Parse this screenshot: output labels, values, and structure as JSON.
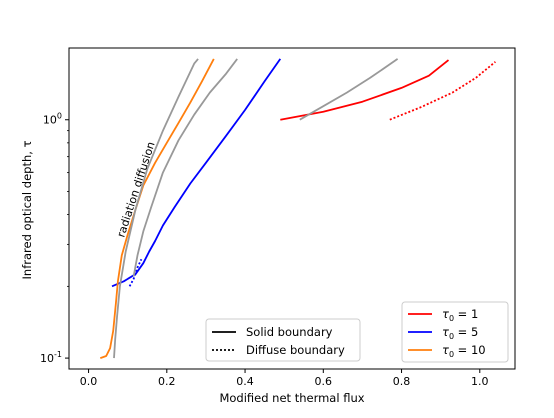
{
  "chart_data": {
    "type": "line",
    "xlabel": "Modified net thermal flux",
    "ylabel": "Infrared optical depth, τ",
    "y_scale": "log",
    "xlim": [
      -0.05,
      1.09
    ],
    "ylim": [
      0.09,
      2.0
    ],
    "grid": false,
    "x_ticks": [
      0.0,
      0.2,
      0.4,
      0.6,
      0.8,
      1.0
    ],
    "x_tick_labels": [
      "0.0",
      "0.2",
      "0.4",
      "0.6",
      "0.8",
      "1.0"
    ],
    "y_ticks": [
      0.1,
      1.0
    ],
    "y_tick_labels_base": [
      "10",
      "10"
    ],
    "y_tick_labels_exp": [
      "-1",
      "0"
    ],
    "annotation": {
      "text": "radiation diffusion",
      "color": "#999999"
    },
    "colors": {
      "tau1": "#ff0000",
      "tau5": "#0000ff",
      "tau10": "#ff7f0e",
      "reference": "#999999"
    },
    "series": [
      {
        "key": "tau5",
        "color": "#0000ff",
        "style": "solid",
        "points": [
          [
            0.06,
            0.2
          ],
          [
            0.09,
            0.21
          ],
          [
            0.12,
            0.225
          ],
          [
            0.14,
            0.25
          ],
          [
            0.155,
            0.28
          ],
          [
            0.17,
            0.31
          ],
          [
            0.19,
            0.36
          ],
          [
            0.22,
            0.43
          ],
          [
            0.26,
            0.54
          ],
          [
            0.3,
            0.66
          ],
          [
            0.35,
            0.85
          ],
          [
            0.4,
            1.1
          ],
          [
            0.45,
            1.45
          ],
          [
            0.49,
            1.8
          ]
        ]
      },
      {
        "key": "tau5",
        "color": "#0000ff",
        "style": "dotted",
        "points": [
          [
            0.105,
            0.2
          ],
          [
            0.115,
            0.215
          ],
          [
            0.125,
            0.24
          ],
          [
            0.135,
            0.26
          ]
        ]
      },
      {
        "key": "tau10",
        "color": "#ff7f0e",
        "style": "solid",
        "points": [
          [
            0.03,
            0.1
          ],
          [
            0.045,
            0.102
          ],
          [
            0.055,
            0.11
          ],
          [
            0.063,
            0.13
          ],
          [
            0.07,
            0.17
          ],
          [
            0.075,
            0.21
          ],
          [
            0.085,
            0.27
          ],
          [
            0.1,
            0.33
          ],
          [
            0.12,
            0.42
          ],
          [
            0.14,
            0.53
          ],
          [
            0.17,
            0.66
          ],
          [
            0.2,
            0.8
          ],
          [
            0.23,
            0.97
          ],
          [
            0.26,
            1.18
          ],
          [
            0.29,
            1.45
          ],
          [
            0.32,
            1.8
          ]
        ]
      },
      {
        "key": "tau1",
        "color": "#ff0000",
        "style": "solid",
        "points": [
          [
            0.49,
            1.0
          ],
          [
            0.6,
            1.08
          ],
          [
            0.7,
            1.19
          ],
          [
            0.8,
            1.36
          ],
          [
            0.87,
            1.53
          ],
          [
            0.92,
            1.78
          ]
        ]
      },
      {
        "key": "tau1",
        "color": "#ff0000",
        "style": "dotted",
        "points": [
          [
            0.77,
            1.0
          ],
          [
            0.85,
            1.13
          ],
          [
            0.93,
            1.3
          ],
          [
            0.99,
            1.5
          ],
          [
            1.04,
            1.75
          ]
        ]
      },
      {
        "key": "reference",
        "color": "#999999",
        "style": "solid",
        "points": [
          [
            0.065,
            0.1
          ],
          [
            0.068,
            0.12
          ],
          [
            0.073,
            0.15
          ],
          [
            0.08,
            0.2
          ],
          [
            0.095,
            0.28
          ],
          [
            0.12,
            0.42
          ],
          [
            0.15,
            0.62
          ],
          [
            0.19,
            0.9
          ],
          [
            0.23,
            1.25
          ],
          [
            0.27,
            1.72
          ],
          [
            0.28,
            1.8
          ]
        ]
      },
      {
        "key": "reference",
        "color": "#999999",
        "style": "solid",
        "points": [
          [
            0.115,
            0.22
          ],
          [
            0.125,
            0.27
          ],
          [
            0.14,
            0.34
          ],
          [
            0.16,
            0.43
          ],
          [
            0.19,
            0.6
          ],
          [
            0.23,
            0.82
          ],
          [
            0.27,
            1.05
          ],
          [
            0.31,
            1.3
          ],
          [
            0.35,
            1.55
          ],
          [
            0.38,
            1.8
          ]
        ]
      },
      {
        "key": "reference",
        "color": "#999999",
        "style": "solid",
        "points": [
          [
            0.54,
            1.0
          ],
          [
            0.6,
            1.14
          ],
          [
            0.66,
            1.3
          ],
          [
            0.72,
            1.5
          ],
          [
            0.79,
            1.8
          ]
        ]
      }
    ],
    "legend_boundary": [
      {
        "label": "Solid boundary",
        "style": "solid"
      },
      {
        "label": "Diffuse boundary",
        "style": "dotted"
      }
    ],
    "legend_tau": [
      {
        "key": "tau1",
        "base": "τ",
        "sub": "0",
        "eq": " = 1"
      },
      {
        "key": "tau5",
        "base": "τ",
        "sub": "0",
        "eq": " = 5"
      },
      {
        "key": "tau10",
        "base": "τ",
        "sub": "0",
        "eq": " = 10"
      }
    ]
  }
}
